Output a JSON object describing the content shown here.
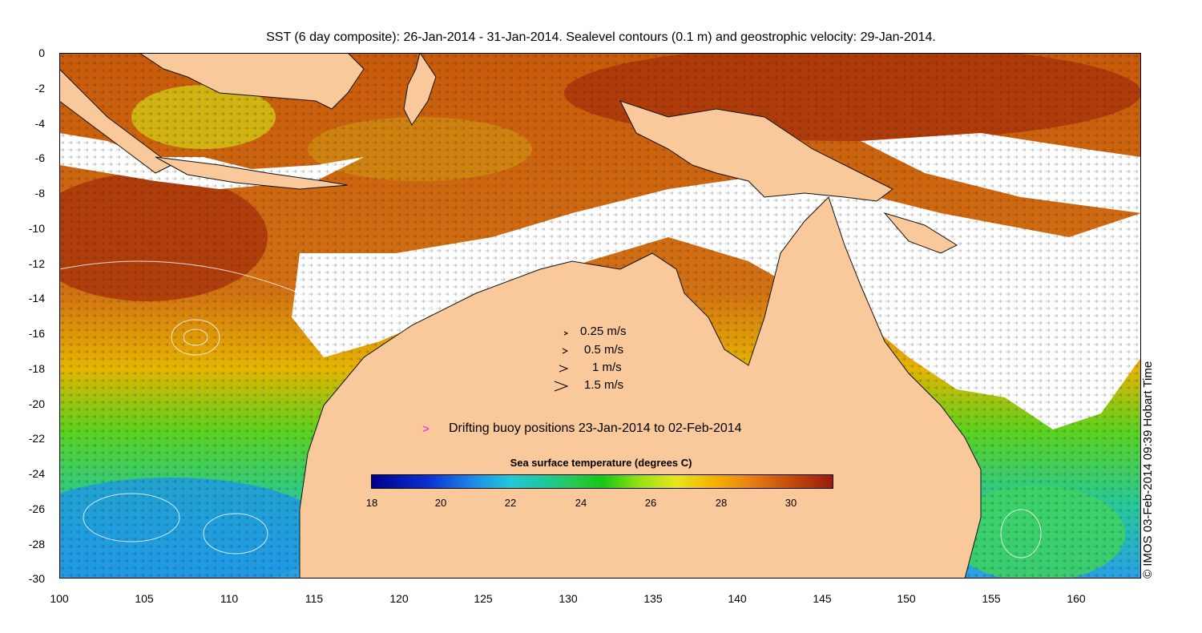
{
  "title": "SST (6 day composite): 26-Jan-2014 - 31-Jan-2014. Sealevel contours (0.1 m) and geostrophic velocity: 29-Jan-2014.",
  "credit": "© IMOS 03-Feb-2014 09:39 Hobart Time",
  "axes": {
    "y_ticks": [
      "0",
      "-2",
      "-4",
      "-6",
      "-8",
      "-10",
      "-12",
      "-14",
      "-16",
      "-18",
      "-20",
      "-22",
      "-24",
      "-26",
      "-28",
      "-30"
    ],
    "x_ticks": [
      "100",
      "105",
      "110",
      "115",
      "120",
      "125",
      "130",
      "135",
      "140",
      "145",
      "150",
      "155",
      "160"
    ]
  },
  "legend": {
    "speeds": [
      "0.25 m/s",
      "0.5 m/s",
      "1 m/s",
      "1.5 m/s"
    ],
    "buoy_label": "Drifting buoy positions 23-Jan-2014 to 02-Feb-2014",
    "buoy_marker": ">"
  },
  "colorbar": {
    "title": "Sea surface temperature (degrees C)",
    "ticks": [
      "18",
      "20",
      "22",
      "24",
      "26",
      "28",
      "30"
    ]
  },
  "colors": {
    "land": "#f9c89b",
    "cloud": "#ffffff",
    "buoy": "#e020e0"
  }
}
